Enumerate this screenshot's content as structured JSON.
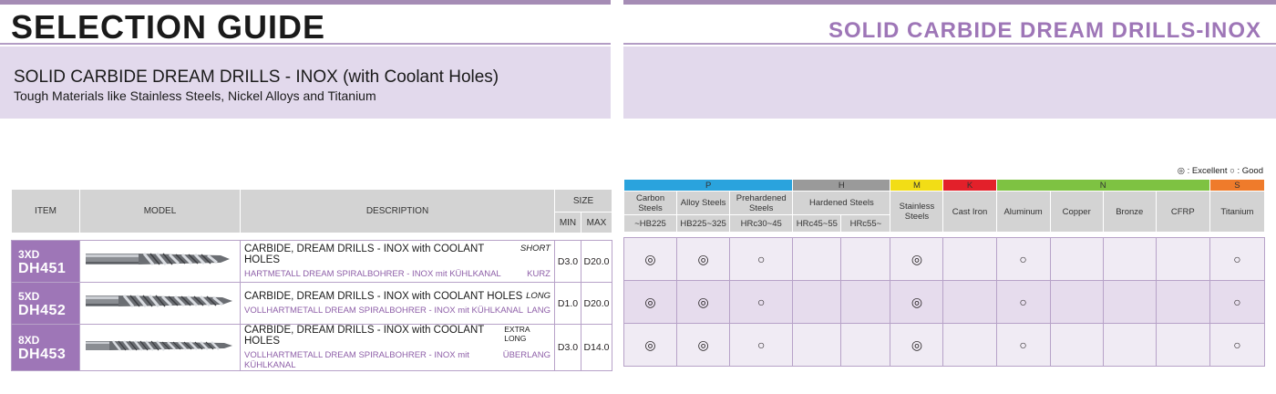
{
  "header": {
    "left_title": "SELECTION GUIDE",
    "right_title": "SOLID CARBIDE DREAM DRILLS-INOX"
  },
  "banner": {
    "title": "SOLID CARBIDE DREAM DRILLS - INOX (with Coolant Holes)",
    "subtitle": "Tough Materials like Stainless Steels, Nickel Alloys and Titanium"
  },
  "legend": "◎ : Excellent  ○ : Good",
  "left_table": {
    "headers": {
      "item": "ITEM",
      "model": "MODEL",
      "description": "DESCRIPTION",
      "size": "SIZE",
      "min": "MIN",
      "max": "MAX"
    },
    "rows": [
      {
        "xd": "3XD",
        "code": "DH451",
        "desc_en": "CARBIDE, DREAM DRILLS - INOX with COOLANT HOLES",
        "len_en": "SHORT",
        "desc_de": "HARTMETALL DREAM SPIRALBOHRER - INOX mit KÜHLKANAL",
        "len_de": "KURZ",
        "min": "D3.0",
        "max": "D20.0"
      },
      {
        "xd": "5XD",
        "code": "DH452",
        "desc_en": "CARBIDE, DREAM DRILLS - INOX with COOLANT HOLES",
        "len_en": "LONG",
        "desc_de": "VOLLHARTMETALL DREAM SPIRALBOHRER - INOX mit KÜHLKANAL",
        "len_de": "LANG",
        "min": "D1.0",
        "max": "D20.0"
      },
      {
        "xd": "8XD",
        "code": "DH453",
        "desc_en": "CARBIDE, DREAM DRILLS - INOX with COOLANT HOLES",
        "len_en": "EXTRA LONG",
        "desc_de": "VOLLHARTMETALL DREAM SPIRALBOHRER - INOX mit KÜHLKANAL",
        "len_de": "ÜBERLANG",
        "min": "D3.0",
        "max": "D14.0"
      }
    ]
  },
  "right_table": {
    "groups": [
      "P",
      "H",
      "M",
      "K",
      "N",
      "S"
    ],
    "materials": {
      "carbon": "Carbon Steels",
      "alloy": "Alloy Steels",
      "prehardened": "Prehardened Steels",
      "hardened": "Hardened Steels",
      "stainless": "Stainless Steels",
      "castiron": "Cast Iron",
      "aluminum": "Aluminum",
      "copper": "Copper",
      "bronze": "Bronze",
      "cfrp": "CFRP",
      "titanium": "Titanium"
    },
    "hardness": [
      "~HB225",
      "HB225~325",
      "HRc30~45",
      "HRc45~55",
      "HRc55~"
    ],
    "rows": [
      [
        "◎",
        "◎",
        "○",
        "",
        "",
        "◎",
        "",
        "○",
        "",
        "",
        "",
        "○"
      ],
      [
        "◎",
        "◎",
        "○",
        "",
        "",
        "◎",
        "",
        "○",
        "",
        "",
        "",
        "○"
      ],
      [
        "◎",
        "◎",
        "○",
        "",
        "",
        "◎",
        "",
        "○",
        "",
        "",
        "",
        "○"
      ]
    ]
  }
}
